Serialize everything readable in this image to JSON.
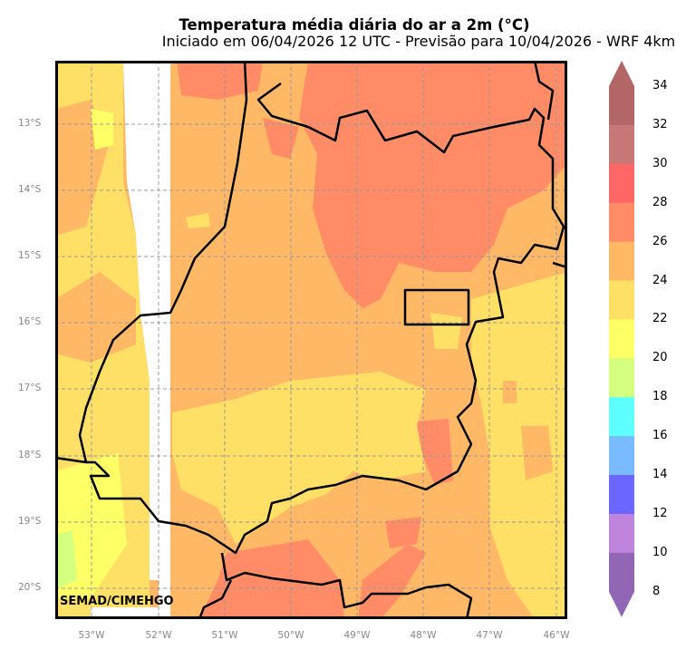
{
  "title": "Temperatura média diária do ar a 2m (°C)",
  "subtitle": "Iniciado em 06/04/2026 12 UTC - Previsão para 10/04/2026 - WRF 4km",
  "credit": "SEMAD/CIMEHGO",
  "lat_labels": [
    "13°S",
    "14°S",
    "15°S",
    "16°S",
    "17°S",
    "18°S",
    "19°S",
    "20°S"
  ],
  "lon_labels": [
    "53°W",
    "52°W",
    "51°W",
    "50°W",
    "49°W",
    "48°W",
    "47°W",
    "46°W"
  ],
  "colorbar": {
    "ticks": [
      "34",
      "32",
      "30",
      "28",
      "26",
      "24",
      "22",
      "20",
      "18",
      "16",
      "14",
      "12",
      "10",
      "8"
    ],
    "colors_top_to_bottom": [
      "#B36666",
      "#C87777",
      "#FF6666",
      "#FF8C66",
      "#FFB866",
      "#FFE066",
      "#FFFF66",
      "#D4FF7F",
      "#5EFFFF",
      "#7ABBFF",
      "#6B66FF",
      "#BF84DD",
      "#9167B5"
    ],
    "over_color": "#B36666",
    "under_color": "#9167B5"
  },
  "map_colors": {
    "orange": "#FFB866",
    "red": "#FF8C66",
    "yellow": "#FFE066",
    "lightyellow": "#FFFF66",
    "green": "#D4FF7F"
  }
}
